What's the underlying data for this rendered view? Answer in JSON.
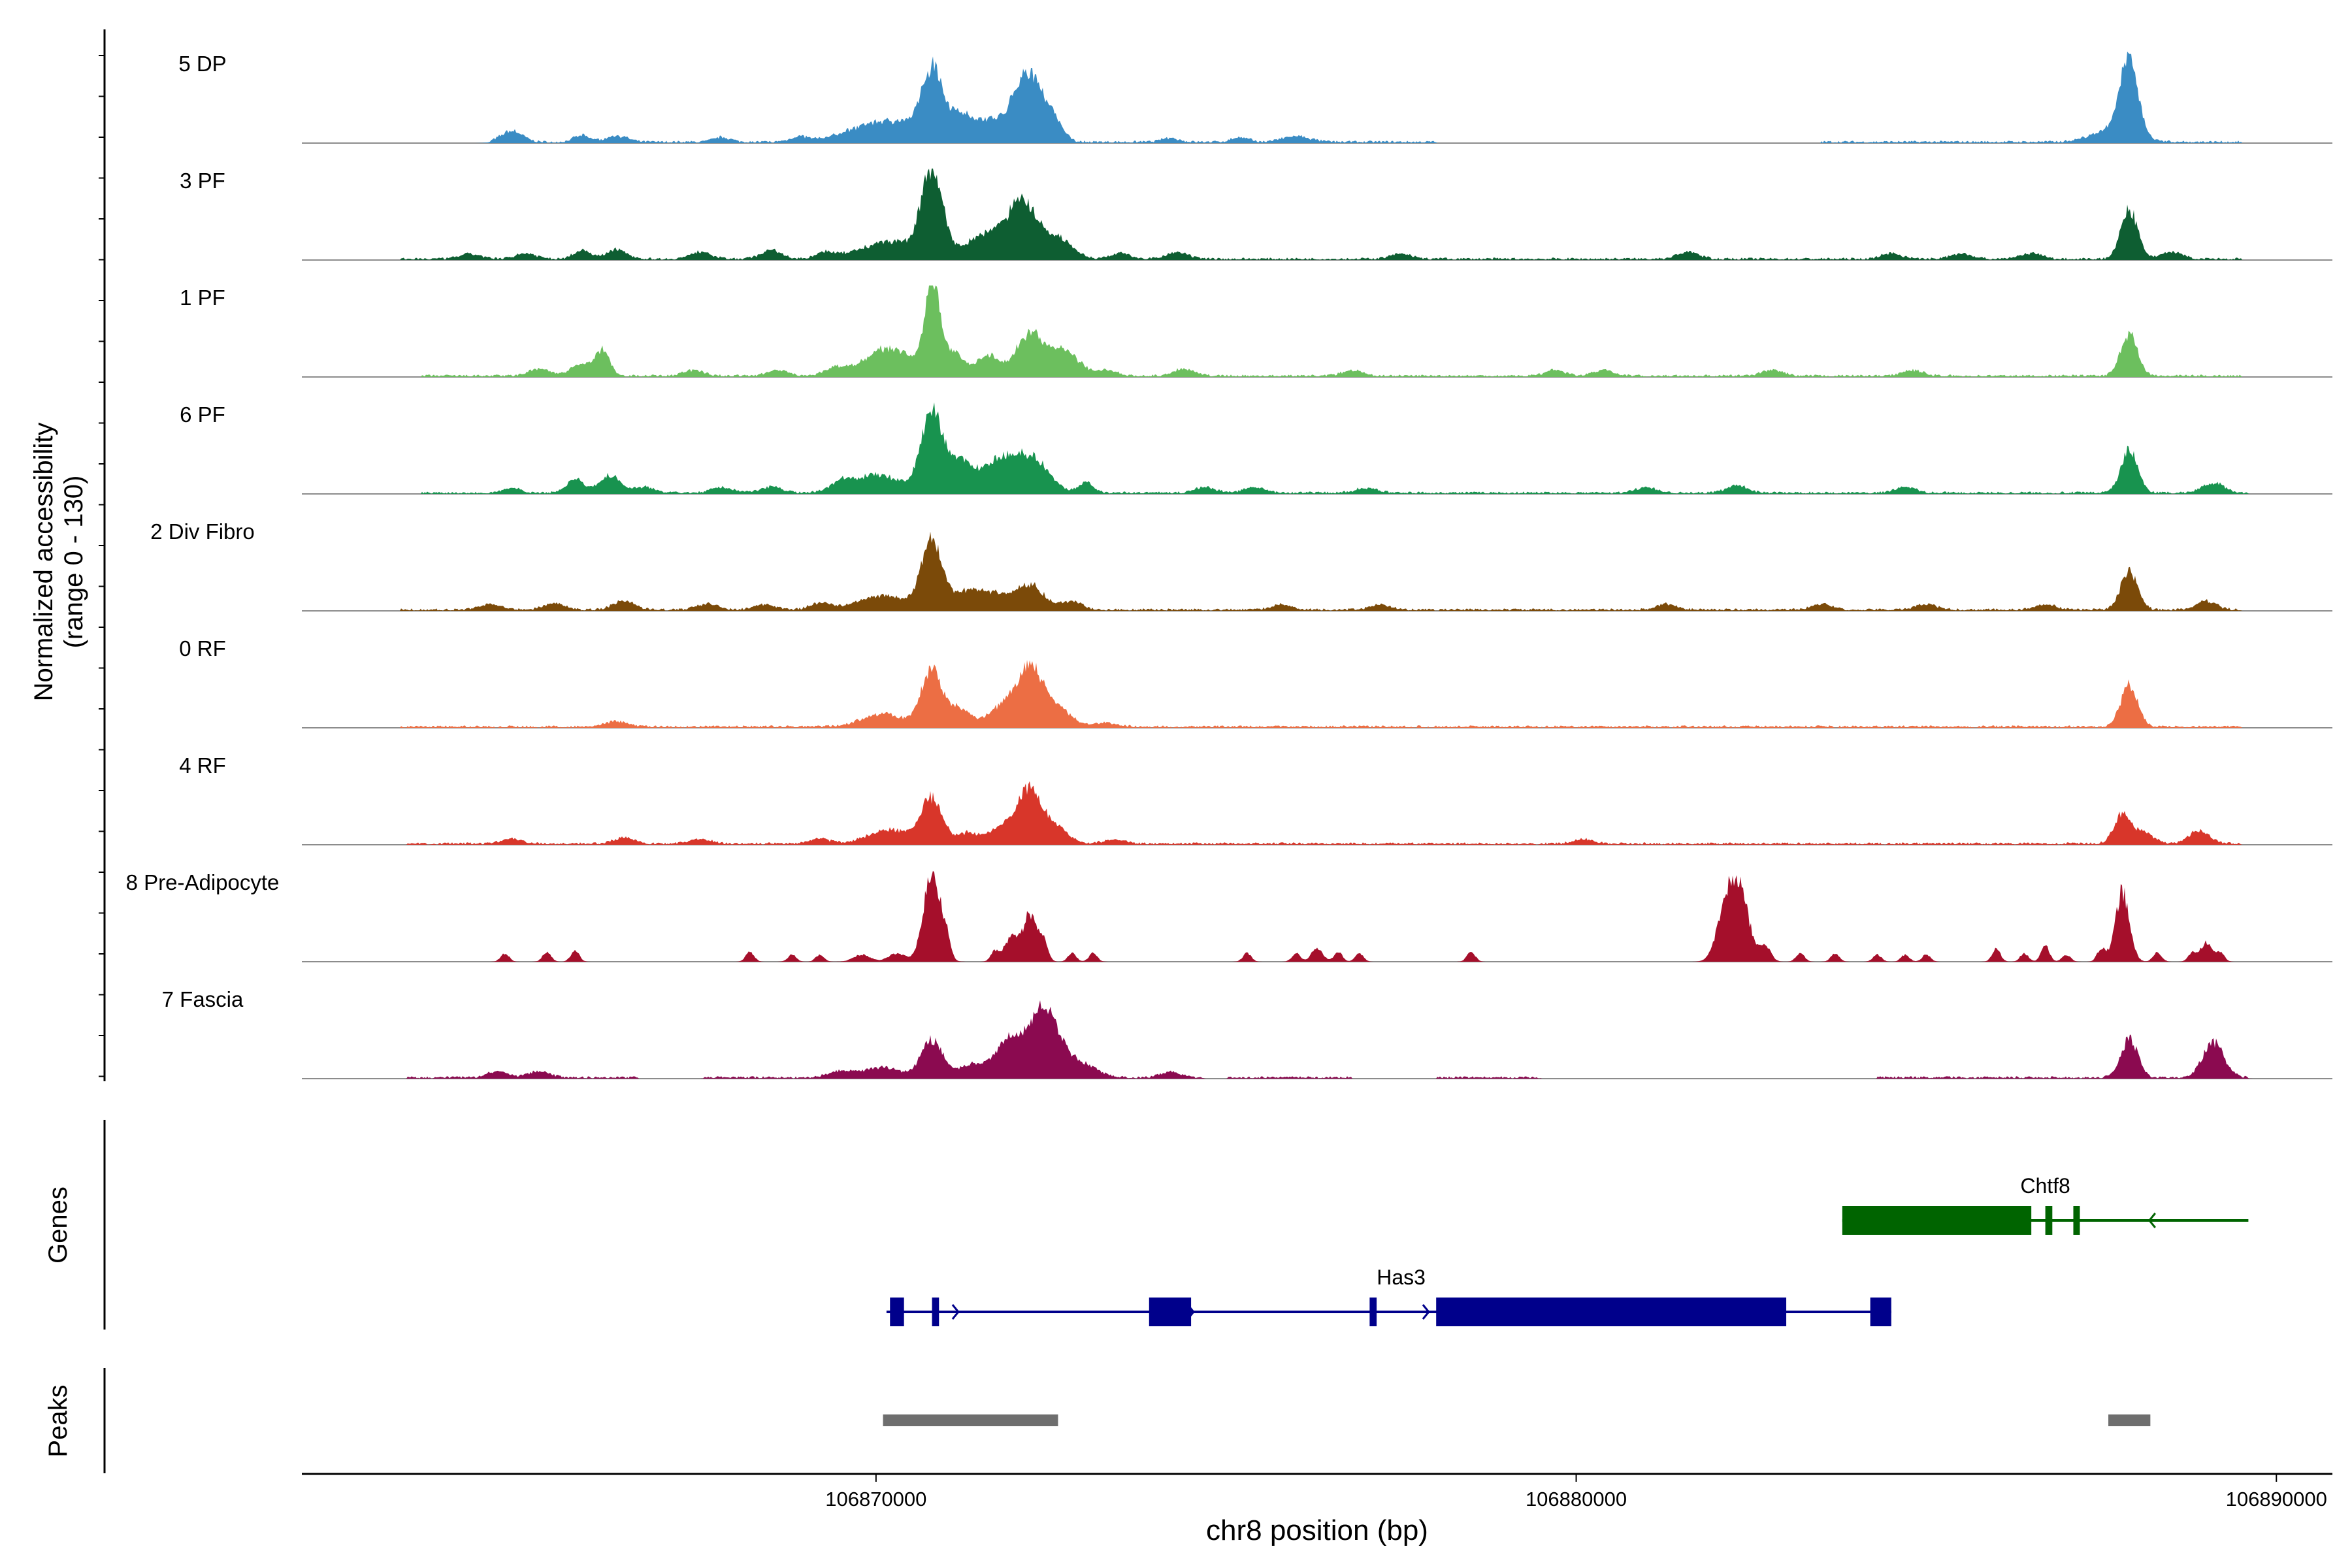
{
  "chart_data": {
    "type": "area",
    "region": {
      "chromosome": "chr8",
      "start": 106861800,
      "end": 106890800
    },
    "y_axis_label": "Normalized accessibility",
    "y_axis_range_label": "(range 0 - 130)",
    "ylim": [
      0,
      130
    ],
    "x_axis_label": "chr8 position (bp)",
    "x_ticks": [
      106870000,
      106880000,
      106890000
    ],
    "x_tick_labels": [
      "106870000",
      "106880000",
      "106890000"
    ],
    "tracks": [
      {
        "name": "5 DP",
        "color": "#3A8CC4",
        "noise": [
          [
            106864500,
            106878000
          ],
          [
            106883500,
            106889500
          ]
        ],
        "peaks": [
          [
            106864800,
            16,
            150
          ],
          [
            106865800,
            9,
            120
          ],
          [
            106866300,
            9,
            150
          ],
          [
            106867800,
            7,
            120
          ],
          [
            106868900,
            7,
            120
          ],
          [
            106870150,
            30,
            500
          ],
          [
            106870800,
            95,
            150
          ],
          [
            106871200,
            35,
            150
          ],
          [
            106871600,
            30,
            200
          ],
          [
            106872150,
            95,
            200
          ],
          [
            106872500,
            30,
            150
          ],
          [
            106874200,
            6,
            120
          ],
          [
            106875200,
            7,
            120
          ],
          [
            106876000,
            8,
            200
          ],
          [
            106887900,
            110,
            120
          ],
          [
            106887700,
            20,
            300
          ]
        ]
      },
      {
        "name": "3 PF",
        "color": "#0E5E32",
        "noise": [
          [
            106863200,
            106889500
          ]
        ],
        "peaks": [
          [
            106864200,
            7,
            150
          ],
          [
            106865000,
            8,
            150
          ],
          [
            106865800,
            12,
            120
          ],
          [
            106866300,
            13,
            150
          ],
          [
            106867500,
            10,
            150
          ],
          [
            106868500,
            12,
            150
          ],
          [
            106869300,
            9,
            150
          ],
          [
            106870200,
            25,
            400
          ],
          [
            106870800,
            120,
            150
          ],
          [
            106871600,
            35,
            300
          ],
          [
            106872100,
            75,
            200
          ],
          [
            106872600,
            30,
            200
          ],
          [
            106873500,
            8,
            150
          ],
          [
            106874300,
            9,
            150
          ],
          [
            106877500,
            7,
            150
          ],
          [
            106881600,
            10,
            150
          ],
          [
            106884500,
            8,
            150
          ],
          [
            106885500,
            8,
            150
          ],
          [
            106886500,
            8,
            150
          ],
          [
            106887900,
            70,
            120
          ],
          [
            106888500,
            10,
            150
          ]
        ]
      },
      {
        "name": "1 PF",
        "color": "#6CBF5E",
        "noise": [
          [
            106863500,
            106889500
          ]
        ],
        "peaks": [
          [
            106865200,
            10,
            150
          ],
          [
            106865800,
            18,
            150
          ],
          [
            106866100,
            35,
            100
          ],
          [
            106867400,
            8,
            150
          ],
          [
            106868600,
            8,
            150
          ],
          [
            106869400,
            10,
            150
          ],
          [
            106870200,
            40,
            350
          ],
          [
            106870800,
            130,
            100
          ],
          [
            106871100,
            35,
            150
          ],
          [
            106871600,
            30,
            150
          ],
          [
            106872200,
            60,
            200
          ],
          [
            106872700,
            35,
            200
          ],
          [
            106873300,
            8,
            150
          ],
          [
            106874400,
            10,
            150
          ],
          [
            106876800,
            8,
            150
          ],
          [
            106879700,
            8,
            150
          ],
          [
            106880400,
            8,
            150
          ],
          [
            106882800,
            8,
            150
          ],
          [
            106884800,
            8,
            150
          ],
          [
            106887900,
            60,
            120
          ]
        ]
      },
      {
        "name": "6 PF",
        "color": "#18934F",
        "noise": [
          [
            106863500,
            106889600
          ]
        ],
        "peaks": [
          [
            106864800,
            7,
            120
          ],
          [
            106865700,
            20,
            120
          ],
          [
            106866200,
            25,
            150
          ],
          [
            106866700,
            8,
            150
          ],
          [
            106867800,
            8,
            150
          ],
          [
            106868500,
            9,
            150
          ],
          [
            106869500,
            10,
            150
          ],
          [
            106870000,
            25,
            350
          ],
          [
            106870800,
            120,
            150
          ],
          [
            106871200,
            40,
            150
          ],
          [
            106871700,
            40,
            250
          ],
          [
            106872200,
            50,
            250
          ],
          [
            106873000,
            15,
            100
          ],
          [
            106874700,
            8,
            150
          ],
          [
            106875400,
            8,
            150
          ],
          [
            106877000,
            7,
            150
          ],
          [
            106881000,
            8,
            150
          ],
          [
            106882300,
            10,
            150
          ],
          [
            106884700,
            8,
            150
          ],
          [
            106887900,
            60,
            120
          ],
          [
            106889100,
            15,
            150
          ]
        ]
      },
      {
        "name": "2 Div Fibro",
        "color": "#7B4A09",
        "noise": [
          [
            106863200,
            106889500
          ]
        ],
        "peaks": [
          [
            106864500,
            9,
            150
          ],
          [
            106865400,
            9,
            150
          ],
          [
            106866400,
            13,
            150
          ],
          [
            106867600,
            9,
            150
          ],
          [
            106868400,
            8,
            150
          ],
          [
            106869200,
            9,
            150
          ],
          [
            106870100,
            20,
            350
          ],
          [
            106870800,
            95,
            150
          ],
          [
            106871300,
            25,
            200
          ],
          [
            106871700,
            20,
            200
          ],
          [
            106872200,
            35,
            200
          ],
          [
            106872800,
            12,
            150
          ],
          [
            106875800,
            8,
            150
          ],
          [
            106877200,
            7,
            150
          ],
          [
            106881300,
            8,
            150
          ],
          [
            106883500,
            8,
            150
          ],
          [
            106885000,
            8,
            150
          ],
          [
            106886700,
            8,
            150
          ],
          [
            106887900,
            55,
            120
          ],
          [
            106889000,
            12,
            150
          ]
        ]
      },
      {
        "name": "0 RF",
        "color": "#EC6E44",
        "noise": [
          [
            106863200,
            106889500
          ]
        ],
        "peaks": [
          [
            106866300,
            8,
            150
          ],
          [
            106870100,
            18,
            300
          ],
          [
            106870800,
            80,
            150
          ],
          [
            106871200,
            25,
            150
          ],
          [
            106871800,
            28,
            200
          ],
          [
            106872200,
            80,
            180
          ],
          [
            106872600,
            25,
            200
          ],
          [
            106873300,
            6,
            150
          ],
          [
            106887900,
            60,
            120
          ]
        ]
      },
      {
        "name": "4 RF",
        "color": "#D8362A",
        "noise": [
          [
            106863300,
            106889500
          ]
        ],
        "peaks": [
          [
            106864800,
            7,
            150
          ],
          [
            106866400,
            8,
            150
          ],
          [
            106867500,
            7,
            150
          ],
          [
            106869200,
            7,
            150
          ],
          [
            106870200,
            20,
            300
          ],
          [
            106870800,
            65,
            150
          ],
          [
            106871300,
            15,
            150
          ],
          [
            106871800,
            22,
            200
          ],
          [
            106872200,
            75,
            180
          ],
          [
            106872600,
            20,
            150
          ],
          [
            106873400,
            6,
            150
          ],
          [
            106880100,
            6,
            150
          ],
          [
            106887800,
            40,
            120
          ],
          [
            106888100,
            15,
            150
          ],
          [
            106888900,
            18,
            150
          ]
        ]
      },
      {
        "name": "8 Pre-Adipocyte",
        "color": "#A50F2B",
        "noise": [],
        "peaks": [
          [
            106864700,
            12,
            60
          ],
          [
            106865300,
            14,
            60
          ],
          [
            106865700,
            16,
            60
          ],
          [
            106868200,
            14,
            60
          ],
          [
            106868800,
            10,
            60
          ],
          [
            106869200,
            10,
            60
          ],
          [
            106869800,
            10,
            120
          ],
          [
            106870300,
            12,
            120
          ],
          [
            106870800,
            125,
            120
          ],
          [
            106871000,
            25,
            60
          ],
          [
            106871700,
            15,
            60
          ],
          [
            106871900,
            28,
            80
          ],
          [
            106872000,
            15,
            60
          ],
          [
            106872200,
            70,
            100
          ],
          [
            106872400,
            25,
            60
          ],
          [
            106872800,
            12,
            60
          ],
          [
            106873100,
            12,
            60
          ],
          [
            106875300,
            12,
            60
          ],
          [
            106876000,
            12,
            60
          ],
          [
            106876300,
            20,
            80
          ],
          [
            106876600,
            14,
            60
          ],
          [
            106876900,
            12,
            60
          ],
          [
            106878500,
            14,
            60
          ],
          [
            106882100,
            40,
            120
          ],
          [
            106882300,
            110,
            150
          ],
          [
            106882700,
            20,
            80
          ],
          [
            106883200,
            12,
            60
          ],
          [
            106883700,
            12,
            60
          ],
          [
            106884300,
            10,
            60
          ],
          [
            106884700,
            10,
            60
          ],
          [
            106885000,
            10,
            60
          ],
          [
            106886000,
            18,
            60
          ],
          [
            106886400,
            12,
            60
          ],
          [
            106886700,
            22,
            60
          ],
          [
            106887000,
            10,
            60
          ],
          [
            106887500,
            18,
            60
          ],
          [
            106887800,
            100,
            100
          ],
          [
            106888300,
            14,
            60
          ],
          [
            106888800,
            12,
            60
          ],
          [
            106889000,
            28,
            80
          ],
          [
            106889200,
            12,
            60
          ]
        ]
      },
      {
        "name": "7 Fascia",
        "color": "#8B0A50",
        "noise": [
          [
            106863300,
            106866600
          ],
          [
            106867500,
            106874700
          ],
          [
            106875000,
            106876800
          ],
          [
            106878000,
            106879500
          ],
          [
            106884300,
            106889600
          ]
        ],
        "peaks": [
          [
            106864600,
            9,
            150
          ],
          [
            106865200,
            9,
            150
          ],
          [
            106869500,
            9,
            200
          ],
          [
            106870100,
            15,
            250
          ],
          [
            106870800,
            55,
            150
          ],
          [
            106871300,
            15,
            150
          ],
          [
            106871800,
            25,
            250
          ],
          [
            106872100,
            45,
            250
          ],
          [
            106872400,
            60,
            150
          ],
          [
            106872600,
            35,
            200
          ],
          [
            106873000,
            15,
            200
          ],
          [
            106874200,
            8,
            150
          ],
          [
            106887900,
            55,
            120
          ],
          [
            106889100,
            50,
            150
          ]
        ]
      }
    ],
    "genes": [
      {
        "name": "Chtf8",
        "strand": "-",
        "color": "#006400",
        "start": 106883800,
        "end": 106889600,
        "exons": [
          [
            106883800,
            106886500
          ],
          [
            106886700,
            106886800
          ],
          [
            106887100,
            106887150
          ]
        ]
      },
      {
        "name": "Has3",
        "strand": "+",
        "color": "#00008B",
        "start": 106870150,
        "end": 106884500,
        "exons": [
          [
            106870200,
            106870400
          ],
          [
            106870800,
            106870900
          ],
          [
            106873900,
            106874500
          ],
          [
            106877050,
            106877150
          ],
          [
            106878000,
            106883000
          ],
          [
            106884200,
            106884500
          ]
        ]
      }
    ],
    "peaks": [
      [
        106870100,
        106872600
      ],
      [
        106887600,
        106888200
      ]
    ],
    "panel_labels": [
      "Genes",
      "Peaks"
    ]
  }
}
